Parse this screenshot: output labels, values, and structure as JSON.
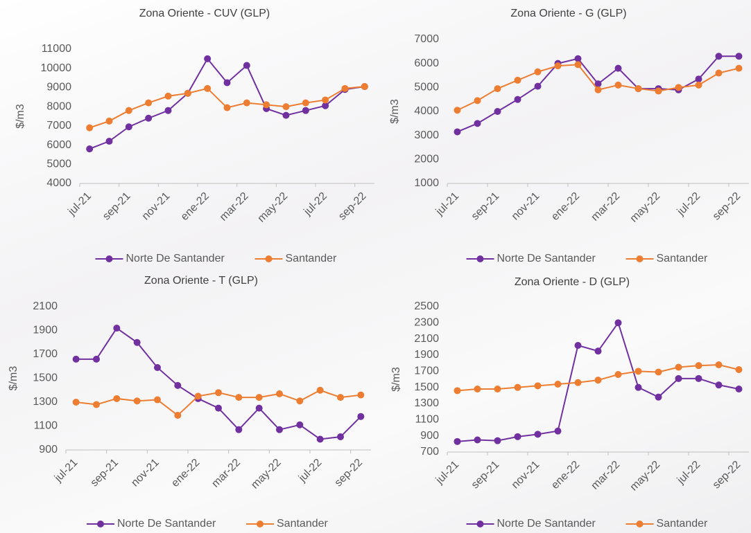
{
  "chart_data": [
    {
      "type": "line",
      "title": "Zona Oriente - CUV (GLP)",
      "y_label": "$/m3",
      "categories": [
        "jul-21",
        null,
        "sep-21",
        null,
        "nov-21",
        null,
        "ene-22",
        null,
        "mar-22",
        null,
        "may-22",
        null,
        "jul-22",
        null,
        "sep-22"
      ],
      "series": [
        {
          "name": "Norte De Santander",
          "color": "#7030a0",
          "values": [
            5800,
            6200,
            6950,
            7400,
            7800,
            8700,
            10500,
            9250,
            10150,
            7900,
            7550,
            7800,
            8050,
            8900,
            9050
          ]
        },
        {
          "name": "Santander",
          "color": "#ed7d31",
          "values": [
            6900,
            7250,
            7800,
            8200,
            8550,
            8700,
            8950,
            7950,
            8200,
            8100,
            8000,
            8200,
            8350,
            8950,
            9050
          ]
        }
      ],
      "ylim": [
        4000,
        11000
      ],
      "yticks": [
        4000,
        5000,
        6000,
        7000,
        8000,
        9000,
        10000,
        11000
      ],
      "grid": false,
      "legend": "bottom"
    },
    {
      "type": "line",
      "title": "Zona Oriente - G (GLP)",
      "y_label": "$/m3",
      "categories": [
        "jul-21",
        null,
        "sep-21",
        null,
        "nov-21",
        null,
        "ene-22",
        null,
        "mar-22",
        null,
        "may-22",
        null,
        "jul-22",
        null,
        "sep-22"
      ],
      "series": [
        {
          "name": "Norte De Santander",
          "color": "#7030a0",
          "values": [
            3150,
            3500,
            4000,
            4500,
            5050,
            6000,
            6200,
            5150,
            5800,
            4950,
            4950,
            4900,
            5350,
            6300,
            6300
          ]
        },
        {
          "name": "Santander",
          "color": "#ed7d31",
          "values": [
            4050,
            4450,
            4950,
            5300,
            5650,
            5900,
            5950,
            4900,
            5100,
            4950,
            4850,
            5000,
            5100,
            5600,
            5800
          ]
        }
      ],
      "ylim": [
        1000,
        7000
      ],
      "yticks": [
        1000,
        2000,
        3000,
        4000,
        5000,
        6000,
        7000
      ],
      "grid": false,
      "legend": "bottom"
    },
    {
      "type": "line",
      "title": "Zona Oriente - T (GLP)",
      "y_label": "$/m3",
      "categories": [
        "jul-21",
        null,
        "sep-21",
        null,
        "nov-21",
        null,
        "ene-22",
        null,
        "mar-22",
        null,
        "may-22",
        null,
        "jul-22",
        null,
        "sep-22"
      ],
      "series": [
        {
          "name": "Norte De Santander",
          "color": "#7030a0",
          "values": [
            1660,
            1660,
            1920,
            1800,
            1590,
            1440,
            1330,
            1250,
            1070,
            1250,
            1070,
            1110,
            990,
            1010,
            1180
          ]
        },
        {
          "name": "Santander",
          "color": "#ed7d31",
          "values": [
            1300,
            1280,
            1330,
            1310,
            1320,
            1190,
            1350,
            1380,
            1340,
            1340,
            1370,
            1310,
            1400,
            1340,
            1360
          ]
        }
      ],
      "ylim": [
        900,
        2100
      ],
      "yticks": [
        900,
        1100,
        1300,
        1500,
        1700,
        1900,
        2100
      ],
      "grid": false,
      "legend": "bottom"
    },
    {
      "type": "line",
      "title": "Zona Oriente - D (GLP)",
      "y_label": "$/m3",
      "categories": [
        "jul-21",
        null,
        "sep-21",
        null,
        "nov-21",
        null,
        "ene-22",
        null,
        "mar-22",
        null,
        "may-22",
        null,
        "jul-22",
        null,
        "sep-22"
      ],
      "series": [
        {
          "name": "Norte De Santander",
          "color": "#7030a0",
          "values": [
            830,
            850,
            840,
            890,
            920,
            960,
            2020,
            1950,
            2300,
            1500,
            1380,
            1610,
            1610,
            1530,
            1480
          ]
        },
        {
          "name": "Santander",
          "color": "#ed7d31",
          "values": [
            1460,
            1480,
            1480,
            1500,
            1520,
            1540,
            1560,
            1590,
            1660,
            1700,
            1690,
            1750,
            1770,
            1780,
            1720
          ]
        }
      ],
      "ylim": [
        700,
        2500
      ],
      "yticks": [
        700,
        900,
        1100,
        1300,
        1500,
        1700,
        1900,
        2100,
        2300,
        2500
      ],
      "grid": false,
      "legend": "bottom"
    }
  ]
}
